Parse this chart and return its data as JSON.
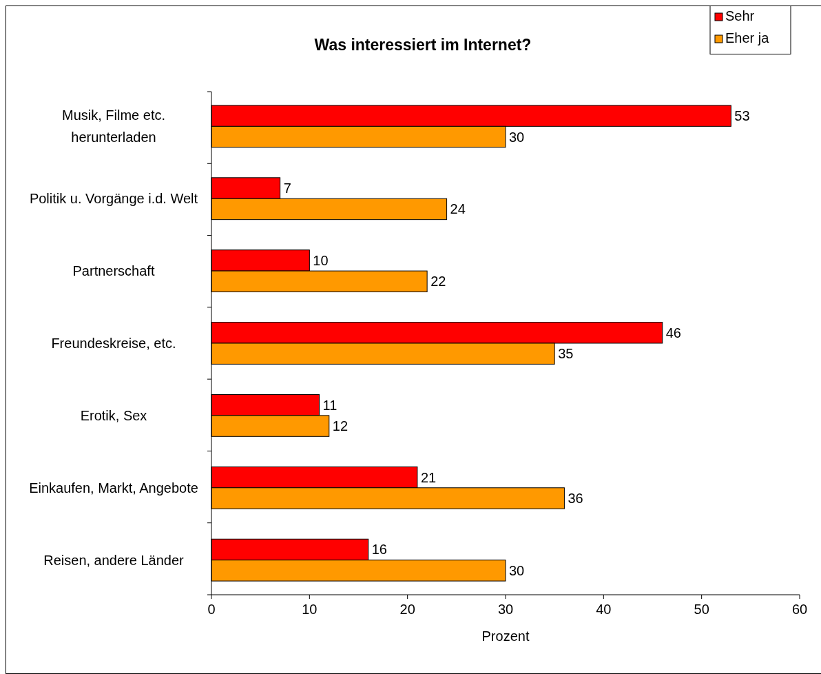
{
  "chart_data": {
    "type": "bar",
    "orientation": "horizontal",
    "title": "Was interessiert im Internet?",
    "xlabel": "Prozent",
    "categories": [
      "Musik, Filme etc. herunterladen",
      "Politik u. Vorgänge i.d. Welt",
      "Partnerschaft",
      "Freundeskreise, etc.",
      "Erotik, Sex",
      "Einkaufen, Markt, Angebote",
      "Reisen, andere Länder"
    ],
    "series": [
      {
        "name": "Sehr",
        "color": "#ff0000",
        "values": [
          53,
          7,
          10,
          46,
          11,
          21,
          16
        ]
      },
      {
        "name": "Eher ja",
        "color": "#ff9900",
        "values": [
          30,
          24,
          22,
          35,
          12,
          36,
          30
        ]
      }
    ],
    "xlim": [
      0,
      60
    ],
    "xticks": [
      0,
      10,
      20,
      30,
      40,
      50,
      60
    ],
    "data_labels": true,
    "legend": "top right",
    "grid": false
  }
}
